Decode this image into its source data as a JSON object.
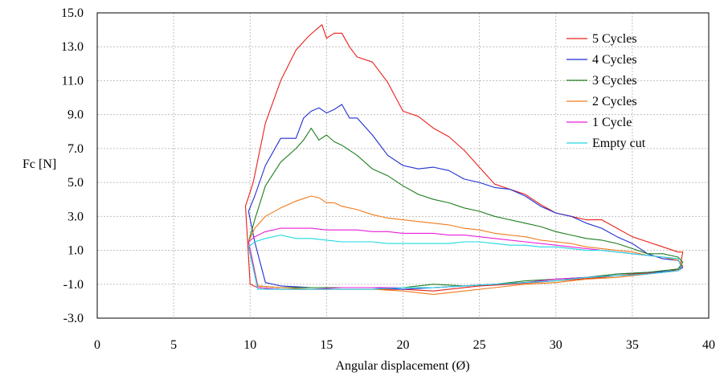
{
  "chart_data": {
    "type": "line",
    "title": "",
    "xlabel": "Angular displacement (Ø)",
    "ylabel": "Fc [N]",
    "xlim": [
      0,
      40
    ],
    "ylim": [
      -3,
      15
    ],
    "x_ticks": [
      0,
      5,
      10,
      15,
      20,
      25,
      30,
      35,
      40
    ],
    "y_ticks": [
      -3.0,
      -1.0,
      1.0,
      3.0,
      5.0,
      7.0,
      9.0,
      11.0,
      13.0,
      15.0
    ],
    "x_tick_labels": [
      "0",
      "5",
      "10",
      "15",
      "20",
      "25",
      "30",
      "35",
      "40"
    ],
    "y_tick_labels": [
      "-3.0",
      "-1.0",
      "1.0",
      "3.0",
      "5.0",
      "7.0",
      "9.0",
      "11.0",
      "13.0",
      "15.0"
    ],
    "grid": true,
    "legend_position": "top-right",
    "series": [
      {
        "name": "5 Cycles",
        "color": "#e8201a",
        "x": [
          9.7,
          10.2,
          11.0,
          12.0,
          13.0,
          13.8,
          14.3,
          14.7,
          15.0,
          15.5,
          16.0,
          16.5,
          17.0,
          18.0,
          19.0,
          20.0,
          21.0,
          22.0,
          23.0,
          24.0,
          25.0,
          26.0,
          27.0,
          28.0,
          29.0,
          30.0,
          31.0,
          32.0,
          33.0,
          34.0,
          35.0,
          36.0,
          37.0,
          38.0,
          38.3,
          38.1,
          37.0,
          35.0,
          33.0,
          30.0,
          27.0,
          25.0,
          23.0,
          22.0,
          20.0,
          18.0,
          16.0,
          14.0,
          12.0,
          10.5,
          10.0,
          9.7
        ],
        "values": [
          3.6,
          5.0,
          8.5,
          11.0,
          12.8,
          13.6,
          14.0,
          14.3,
          13.5,
          13.8,
          13.8,
          13.0,
          12.4,
          12.1,
          10.9,
          9.2,
          8.9,
          8.2,
          7.7,
          6.9,
          5.9,
          4.9,
          4.6,
          4.3,
          3.7,
          3.2,
          3.0,
          2.8,
          2.8,
          2.3,
          1.8,
          1.5,
          1.2,
          0.9,
          0.9,
          -0.1,
          -0.3,
          -0.4,
          -0.6,
          -0.8,
          -1.0,
          -1.1,
          -1.3,
          -1.4,
          -1.3,
          -1.3,
          -1.3,
          -1.3,
          -1.3,
          -1.2,
          -1.0,
          3.6
        ]
      },
      {
        "name": "4 Cycles",
        "color": "#1f2fd0",
        "x": [
          9.9,
          10.3,
          11.0,
          12.0,
          13.0,
          13.5,
          14.0,
          14.5,
          15.0,
          15.5,
          16.0,
          16.5,
          17.0,
          18.0,
          19.0,
          20.0,
          21.0,
          22.0,
          23.0,
          24.0,
          25.0,
          26.0,
          27.0,
          28.0,
          29.0,
          30.0,
          31.0,
          32.0,
          33.0,
          34.0,
          35.0,
          36.0,
          37.0,
          38.0,
          38.3,
          38.0,
          36.0,
          34.0,
          32.0,
          30.0,
          28.0,
          26.0,
          24.0,
          22.0,
          20.0,
          18.0,
          16.0,
          14.0,
          12.0,
          11.0,
          10.3,
          9.9
        ],
        "values": [
          3.3,
          4.2,
          6.0,
          7.6,
          7.6,
          8.8,
          9.2,
          9.4,
          9.1,
          9.3,
          9.6,
          8.8,
          8.8,
          7.8,
          6.6,
          6.0,
          5.8,
          5.9,
          5.7,
          5.2,
          5.0,
          4.7,
          4.6,
          4.2,
          3.6,
          3.2,
          3.0,
          2.6,
          2.3,
          1.8,
          1.4,
          0.8,
          0.5,
          0.4,
          0.0,
          -0.2,
          -0.3,
          -0.4,
          -0.6,
          -0.7,
          -0.9,
          -1.0,
          -1.1,
          -1.2,
          -1.3,
          -1.2,
          -1.2,
          -1.2,
          -1.1,
          -0.9,
          1.5,
          3.3
        ]
      },
      {
        "name": "3 Cycles",
        "color": "#1e7e1e",
        "x": [
          9.9,
          10.3,
          11.0,
          12.0,
          13.0,
          13.5,
          14.0,
          14.5,
          15.0,
          15.5,
          16.0,
          17.0,
          18.0,
          19.0,
          20.0,
          21.0,
          22.0,
          23.0,
          24.0,
          25.0,
          26.0,
          27.0,
          28.0,
          29.0,
          30.0,
          31.0,
          32.0,
          33.0,
          34.0,
          35.0,
          36.0,
          37.0,
          38.0,
          38.3,
          38.0,
          36.0,
          34.0,
          32.0,
          30.0,
          28.0,
          26.0,
          24.0,
          22.0,
          20.0,
          18.0,
          16.0,
          14.0,
          12.0,
          10.5,
          9.9
        ],
        "values": [
          1.5,
          2.8,
          4.8,
          6.2,
          7.0,
          7.5,
          8.2,
          7.5,
          7.8,
          7.4,
          7.2,
          6.6,
          5.8,
          5.4,
          4.8,
          4.3,
          4.0,
          3.8,
          3.5,
          3.3,
          3.0,
          2.8,
          2.6,
          2.4,
          2.1,
          1.9,
          1.7,
          1.6,
          1.4,
          1.1,
          0.8,
          0.8,
          0.6,
          0.3,
          -0.1,
          -0.3,
          -0.4,
          -0.6,
          -0.7,
          -0.8,
          -1.0,
          -1.1,
          -1.0,
          -1.2,
          -1.2,
          -1.2,
          -1.2,
          -1.2,
          -1.1,
          1.5
        ]
      },
      {
        "name": "2 Cycles",
        "color": "#f07a1a",
        "x": [
          9.9,
          10.3,
          11.0,
          12.0,
          13.0,
          14.0,
          14.5,
          15.0,
          15.5,
          16.0,
          17.0,
          18.0,
          19.0,
          20.0,
          21.0,
          22.0,
          23.0,
          24.0,
          25.0,
          26.0,
          27.0,
          28.0,
          29.0,
          30.0,
          31.0,
          32.0,
          33.0,
          34.0,
          35.0,
          36.0,
          37.0,
          38.0,
          38.3,
          38.0,
          36.0,
          34.0,
          32.0,
          30.0,
          28.0,
          26.0,
          24.0,
          22.0,
          20.0,
          18.0,
          16.0,
          14.0,
          12.0,
          10.5,
          9.9
        ],
        "values": [
          1.5,
          2.3,
          3.0,
          3.5,
          3.9,
          4.2,
          4.1,
          3.8,
          3.8,
          3.6,
          3.4,
          3.1,
          2.9,
          2.8,
          2.7,
          2.6,
          2.5,
          2.3,
          2.2,
          2.0,
          1.9,
          1.8,
          1.6,
          1.5,
          1.4,
          1.2,
          1.1,
          1.0,
          0.9,
          0.7,
          0.6,
          0.4,
          0.1,
          -0.2,
          -0.4,
          -0.6,
          -0.7,
          -0.9,
          -1.0,
          -1.2,
          -1.4,
          -1.6,
          -1.4,
          -1.3,
          -1.3,
          -1.3,
          -1.2,
          -1.1,
          1.5
        ]
      },
      {
        "name": "1 Cycle",
        "color": "#e81fd8",
        "x": [
          9.9,
          10.3,
          11.0,
          12.0,
          13.0,
          14.0,
          15.0,
          16.0,
          17.0,
          18.0,
          19.0,
          20.0,
          21.0,
          22.0,
          23.0,
          24.0,
          25.0,
          26.0,
          27.0,
          28.0,
          29.0,
          30.0,
          31.0,
          32.0,
          33.0,
          34.0,
          35.0,
          36.0,
          37.0,
          38.0,
          38.2,
          38.0,
          36.0,
          34.0,
          32.0,
          30.0,
          28.0,
          26.0,
          24.0,
          22.0,
          20.0,
          18.0,
          16.0,
          14.0,
          12.0,
          10.5,
          9.9
        ],
        "values": [
          1.5,
          1.8,
          2.1,
          2.3,
          2.3,
          2.3,
          2.2,
          2.2,
          2.2,
          2.1,
          2.1,
          2.0,
          2.0,
          2.0,
          1.9,
          1.9,
          1.8,
          1.7,
          1.6,
          1.5,
          1.4,
          1.3,
          1.2,
          1.1,
          1.0,
          0.9,
          0.8,
          0.7,
          0.6,
          0.5,
          0.0,
          -0.2,
          -0.4,
          -0.5,
          -0.6,
          -0.7,
          -0.9,
          -1.0,
          -1.1,
          -1.2,
          -1.2,
          -1.2,
          -1.2,
          -1.3,
          -1.3,
          -1.2,
          1.5
        ]
      },
      {
        "name": "Empty cut",
        "color": "#1ed8e0",
        "x": [
          9.9,
          10.3,
          11.0,
          12.0,
          13.0,
          14.0,
          15.0,
          16.0,
          17.0,
          18.0,
          19.0,
          20.0,
          21.0,
          22.0,
          23.0,
          24.0,
          25.0,
          26.0,
          27.0,
          28.0,
          29.0,
          30.0,
          31.0,
          32.0,
          33.0,
          34.0,
          35.0,
          36.0,
          37.0,
          38.0,
          38.2,
          38.0,
          36.0,
          34.0,
          32.0,
          30.0,
          28.0,
          26.0,
          24.0,
          22.0,
          20.0,
          18.0,
          16.0,
          14.0,
          12.0,
          10.5,
          9.9
        ],
        "values": [
          1.2,
          1.5,
          1.7,
          1.9,
          1.7,
          1.7,
          1.6,
          1.5,
          1.5,
          1.5,
          1.4,
          1.4,
          1.4,
          1.4,
          1.4,
          1.5,
          1.5,
          1.4,
          1.3,
          1.3,
          1.2,
          1.2,
          1.1,
          1.0,
          1.0,
          0.9,
          0.8,
          0.7,
          0.6,
          0.5,
          0.0,
          -0.2,
          -0.4,
          -0.5,
          -0.6,
          -0.8,
          -0.9,
          -1.0,
          -1.1,
          -1.2,
          -1.2,
          -1.3,
          -1.3,
          -1.3,
          -1.3,
          -1.3,
          1.2
        ]
      }
    ]
  }
}
